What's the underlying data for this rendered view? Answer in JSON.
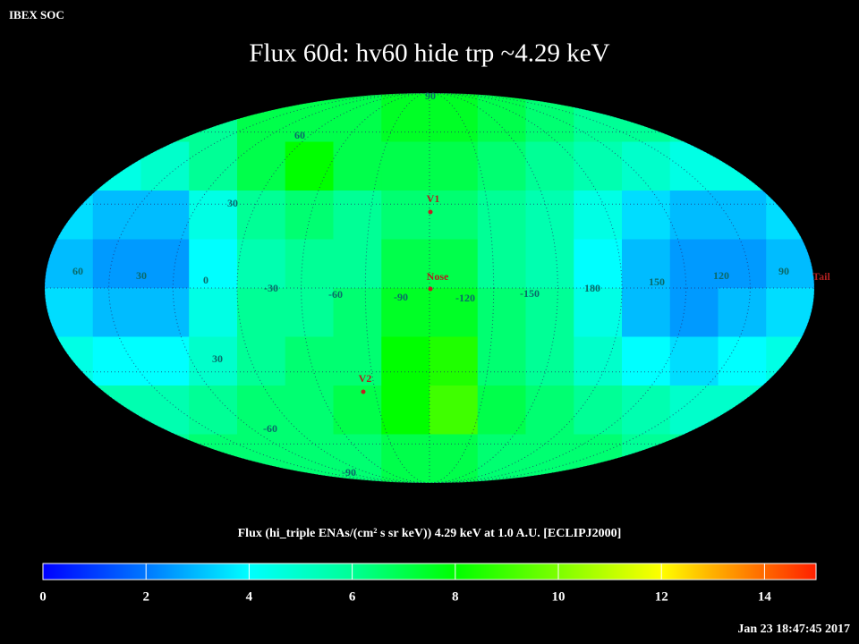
{
  "header": {
    "app": "IBEX SOC",
    "title": "Flux   60d: hv60 hide trp ~4.29 keV",
    "timestamp": "Jan 23 18:47:45 2017"
  },
  "map": {
    "flux": [
      [
        5,
        5,
        6,
        6,
        7,
        7,
        7,
        7.5,
        7.5,
        7,
        6.5,
        6,
        6,
        5.5,
        5,
        5
      ],
      [
        4.5,
        4.5,
        5,
        6,
        7,
        8,
        7,
        7,
        7,
        6.5,
        6,
        5.5,
        5,
        4.5,
        4.5,
        4.5
      ],
      [
        3.5,
        3,
        3,
        4.5,
        6,
        6.5,
        6,
        6.5,
        6.5,
        6,
        5.5,
        4.5,
        3.5,
        3,
        3,
        3.5
      ],
      [
        3,
        2.5,
        2.5,
        4,
        5.5,
        6,
        6,
        7,
        7,
        6,
        5.5,
        4,
        3,
        2.5,
        2.5,
        3
      ],
      [
        3.5,
        3,
        3,
        4.5,
        6,
        6,
        6.5,
        7.5,
        7.5,
        6.5,
        6,
        4.5,
        3,
        2.5,
        3,
        3.5
      ],
      [
        4.5,
        4,
        4,
        5,
        6,
        6.5,
        6.5,
        8,
        8.5,
        6.5,
        6,
        5,
        4,
        3.5,
        4,
        4.5
      ],
      [
        5.5,
        5.5,
        5.5,
        6,
        6.5,
        6.5,
        7,
        8,
        9,
        7,
        6.5,
        6,
        5.5,
        5,
        5,
        5.5
      ],
      [
        6,
        6,
        6,
        6.5,
        6.5,
        6.5,
        6.5,
        7,
        7,
        6.5,
        6.5,
        6.5,
        6,
        6,
        6,
        6
      ]
    ],
    "lon_labels": [
      "60",
      "30",
      "0",
      "-30",
      "-60",
      "-90",
      "-120",
      "-150",
      "180",
      "150",
      "120",
      "90"
    ],
    "lat_labels": [
      "90",
      "60",
      "30",
      "30",
      "-60",
      "-90"
    ],
    "markers": [
      "V1",
      "Nose",
      "V2",
      "Tail"
    ]
  },
  "colorbar": {
    "caption": "Flux (hi_triple ENAs/(cm² s sr keV))  4.29 keV at 1.0 A.U. [ECLIPJ2000]",
    "lim": [
      0,
      15
    ],
    "ticks": [
      0,
      2,
      4,
      6,
      8,
      10,
      12,
      14
    ],
    "colorscale": [
      [
        0,
        "#0000ff"
      ],
      [
        2,
        "#0078ff"
      ],
      [
        4,
        "#00ffff"
      ],
      [
        6,
        "#00ff96"
      ],
      [
        8,
        "#00ff00"
      ],
      [
        10,
        "#7dff00"
      ],
      [
        12,
        "#ffff00"
      ],
      [
        13,
        "#ffb000"
      ],
      [
        15,
        "#ff2000"
      ]
    ]
  }
}
